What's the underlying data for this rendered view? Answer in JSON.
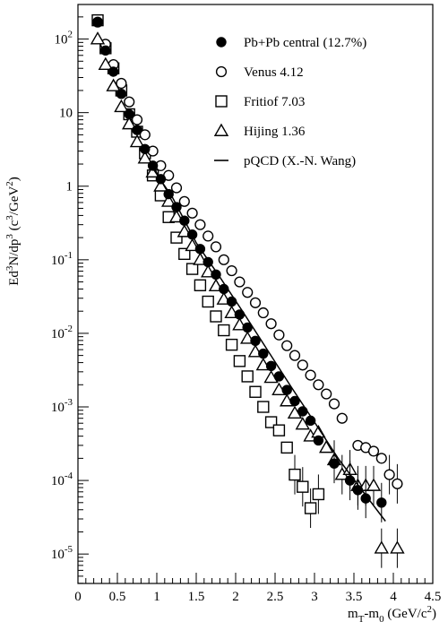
{
  "chart_data": {
    "type": "scatter",
    "title": "",
    "xlabel": "m_T-m_0 (GeV/c^2)",
    "ylabel": "Ed^3N/dp^3 (c^3/GeV^2)",
    "xlim": [
      0,
      4.5
    ],
    "ylim": [
      5e-06,
      300
    ],
    "y_scale": "log",
    "x_tick_labels": [
      "0",
      "0.5",
      "1",
      "1.5",
      "2",
      "2.5",
      "3",
      "3.5",
      "4",
      "4.5"
    ],
    "y_tick_labels": [
      {
        "base": "10",
        "exp": "2"
      },
      {
        "base": "10",
        "exp": ""
      },
      {
        "base": "1",
        "exp": ""
      },
      {
        "base": "10",
        "exp": "-1"
      },
      {
        "base": "10",
        "exp": "-2"
      },
      {
        "base": "10",
        "exp": "-3"
      },
      {
        "base": "10",
        "exp": "-4"
      },
      {
        "base": "10",
        "exp": "-5"
      }
    ],
    "grid": false,
    "legend_position": "top-right",
    "series": [
      {
        "name": "Pb+Pb central (12.7%)",
        "marker": "filled-circle",
        "x": [
          0.25,
          0.35,
          0.45,
          0.55,
          0.65,
          0.75,
          0.85,
          0.95,
          1.05,
          1.15,
          1.25,
          1.35,
          1.45,
          1.55,
          1.65,
          1.75,
          1.85,
          1.95,
          2.05,
          2.15,
          2.25,
          2.35,
          2.45,
          2.55,
          2.65,
          2.75,
          2.85,
          2.95,
          3.05,
          3.25,
          3.45,
          3.55,
          3.65,
          3.85
        ],
        "y": [
          170,
          70,
          36,
          18,
          9.5,
          5.8,
          3.2,
          1.9,
          1.25,
          0.78,
          0.52,
          0.34,
          0.22,
          0.14,
          0.093,
          0.063,
          0.04,
          0.027,
          0.018,
          0.012,
          0.0079,
          0.0053,
          0.0036,
          0.0026,
          0.0017,
          0.0012,
          0.00087,
          0.00065,
          0.00035,
          0.00017,
          0.0001,
          7.4e-05,
          5.7e-05,
          5e-05
        ]
      },
      {
        "name": "Venus 4.12",
        "marker": "open-circle",
        "x": [
          0.25,
          0.35,
          0.45,
          0.55,
          0.65,
          0.75,
          0.85,
          0.95,
          1.05,
          1.15,
          1.25,
          1.35,
          1.45,
          1.55,
          1.65,
          1.75,
          1.85,
          1.95,
          2.05,
          2.15,
          2.25,
          2.35,
          2.45,
          2.55,
          2.65,
          2.75,
          2.85,
          2.95,
          3.05,
          3.15,
          3.25,
          3.35,
          3.55,
          3.65,
          3.75,
          3.85,
          3.95,
          4.05
        ],
        "y": [
          170,
          85,
          45,
          25,
          14,
          8,
          5,
          3,
          1.9,
          1.4,
          0.95,
          0.62,
          0.43,
          0.3,
          0.21,
          0.15,
          0.1,
          0.071,
          0.05,
          0.036,
          0.026,
          0.019,
          0.0135,
          0.0095,
          0.0068,
          0.005,
          0.0037,
          0.0027,
          0.002,
          0.0015,
          0.0011,
          0.0007,
          0.0003,
          0.00028,
          0.00025,
          0.0002,
          0.00012,
          9e-05
        ]
      },
      {
        "name": "Fritiof 7.03",
        "marker": "open-square",
        "x": [
          0.25,
          0.35,
          0.45,
          0.55,
          0.65,
          0.75,
          0.85,
          0.95,
          1.05,
          1.15,
          1.25,
          1.35,
          1.45,
          1.55,
          1.65,
          1.75,
          1.85,
          1.95,
          2.05,
          2.15,
          2.25,
          2.35,
          2.45,
          2.55,
          2.65,
          2.75,
          2.85,
          2.95,
          3.05
        ],
        "y": [
          180,
          75,
          40,
          20,
          9.5,
          5.5,
          2.8,
          1.4,
          0.75,
          0.38,
          0.2,
          0.12,
          0.075,
          0.045,
          0.027,
          0.017,
          0.011,
          0.007,
          0.0042,
          0.0026,
          0.0016,
          0.001,
          0.00062,
          0.00048,
          0.00028,
          0.00012,
          8.2e-05,
          4.2e-05,
          6.5e-05
        ]
      },
      {
        "name": "Hijing 1.36",
        "marker": "open-triangle",
        "x": [
          0.25,
          0.35,
          0.45,
          0.55,
          0.65,
          0.75,
          0.85,
          0.95,
          1.05,
          1.15,
          1.25,
          1.35,
          1.45,
          1.55,
          1.65,
          1.75,
          1.85,
          1.95,
          2.05,
          2.15,
          2.25,
          2.35,
          2.45,
          2.55,
          2.65,
          2.75,
          2.85,
          2.95,
          3.05,
          3.15,
          3.25,
          3.35,
          3.45,
          3.55,
          3.65,
          3.75,
          3.85,
          4.05
        ],
        "y": [
          100,
          45,
          23,
          12,
          7,
          4,
          2.4,
          1.55,
          1.0,
          0.62,
          0.38,
          0.24,
          0.155,
          0.1,
          0.068,
          0.044,
          0.029,
          0.019,
          0.013,
          0.0085,
          0.0056,
          0.0037,
          0.0025,
          0.0017,
          0.0012,
          0.00082,
          0.00058,
          0.0004,
          0.00045,
          0.00028,
          0.00019,
          0.00012,
          0.00014,
          8.5e-05,
          8.5e-05,
          8.5e-05,
          1.2e-05,
          1.2e-05
        ]
      },
      {
        "name": "pQCD (X.-N. Wang)",
        "marker": "line",
        "x": [
          0.9,
          1.2,
          1.5,
          1.8,
          2.1,
          2.4,
          2.7,
          3.0,
          3.3,
          3.6,
          3.9
        ],
        "y": [
          2.1,
          0.7,
          0.17,
          0.058,
          0.019,
          0.006,
          0.0019,
          0.00062,
          0.0002,
          7.4e-05,
          2.8e-05
        ]
      }
    ]
  }
}
